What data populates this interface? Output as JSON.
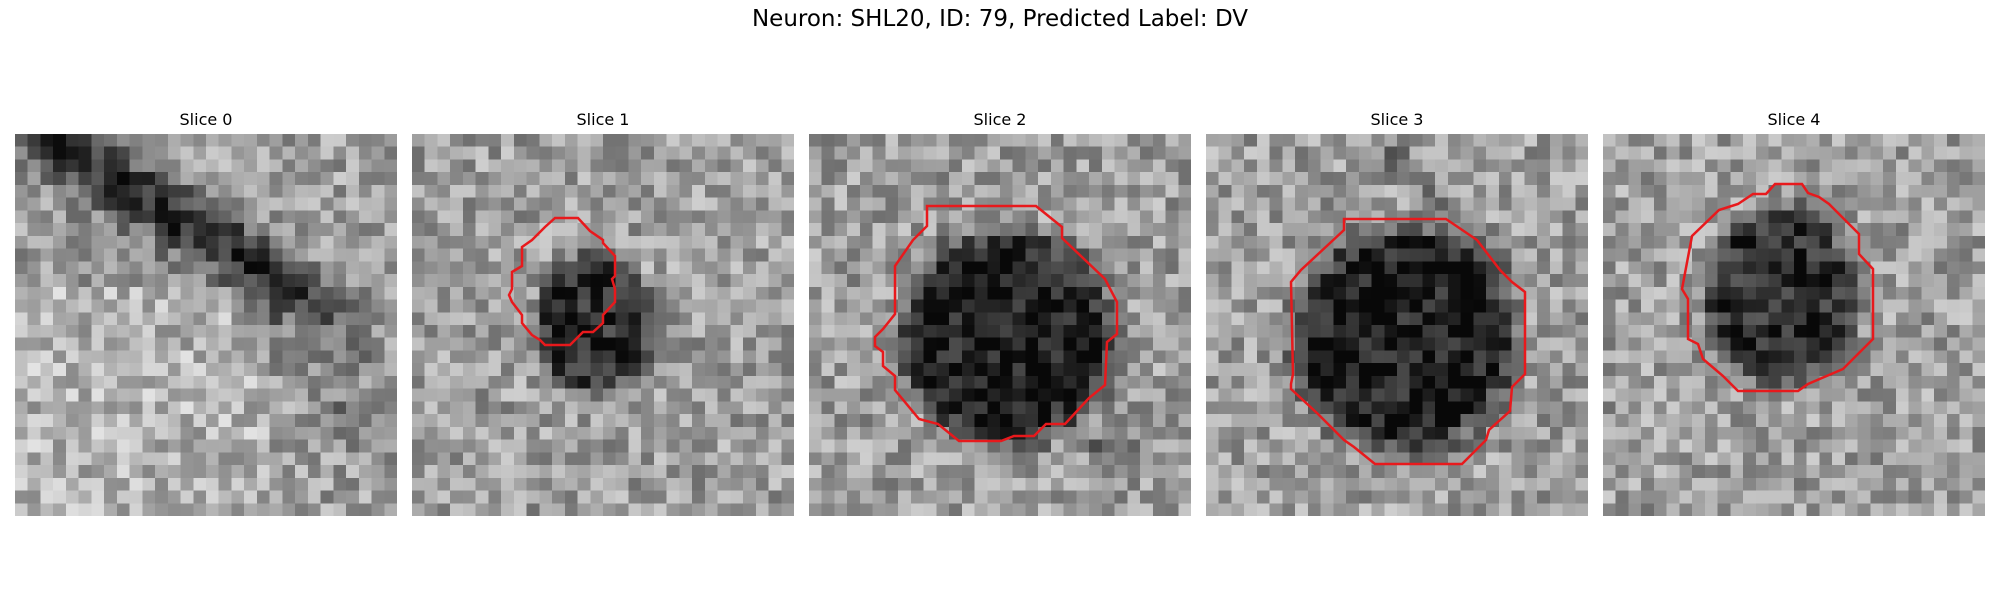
{
  "figure": {
    "title": "Neuron: SHL20, ID: 79, Predicted Label: DV"
  },
  "colors": {
    "contour": "#e8191c",
    "background": "#ffffff"
  },
  "slices": [
    {
      "title": "Slice 0",
      "has_contour": false,
      "contour_shape": "none",
      "pattern": "diagonal-dark-band-top-left"
    },
    {
      "title": "Slice 1",
      "has_contour": true,
      "contour_shape": "small-octagon",
      "pattern": "small-dark-blob-center"
    },
    {
      "title": "Slice 2",
      "has_contour": true,
      "contour_shape": "large-octagon",
      "pattern": "large-dark-blob-center"
    },
    {
      "title": "Slice 3",
      "has_contour": true,
      "contour_shape": "large-octagon",
      "pattern": "large-dark-blob-center"
    },
    {
      "title": "Slice 4",
      "has_contour": true,
      "contour_shape": "medium-octagon",
      "pattern": "medium-dark-blob-center"
    }
  ]
}
